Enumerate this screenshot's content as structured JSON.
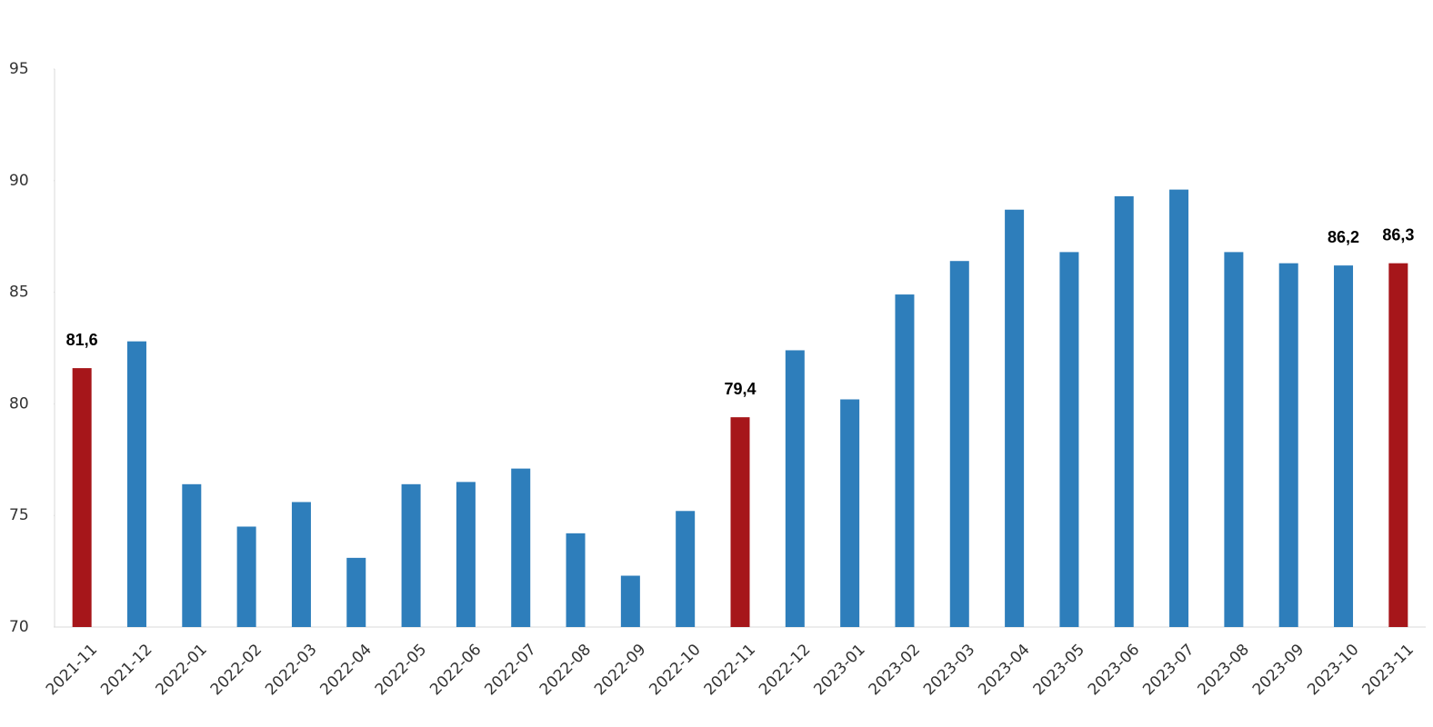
{
  "chart_data": {
    "type": "bar",
    "categories": [
      "2021-11",
      "2021-12",
      "2022-01",
      "2022-02",
      "2022-03",
      "2022-04",
      "2022-05",
      "2022-06",
      "2022-07",
      "2022-08",
      "2022-09",
      "2022-10",
      "2022-11",
      "2022-12",
      "2023-01",
      "2023-02",
      "2023-03",
      "2023-04",
      "2023-05",
      "2023-06",
      "2023-07",
      "2023-08",
      "2023-09",
      "2023-10",
      "2023-11"
    ],
    "values": [
      81.6,
      82.8,
      76.4,
      74.5,
      75.6,
      73.1,
      76.4,
      76.5,
      77.1,
      74.2,
      72.3,
      75.2,
      79.4,
      82.4,
      80.2,
      84.9,
      86.4,
      88.7,
      86.8,
      89.3,
      89.6,
      86.8,
      86.3,
      86.2,
      86.3
    ],
    "value_labels": [
      "81,6",
      null,
      null,
      null,
      null,
      null,
      null,
      null,
      null,
      null,
      null,
      null,
      "79,4",
      null,
      null,
      null,
      null,
      null,
      null,
      null,
      null,
      null,
      null,
      "86,2",
      "86,3"
    ],
    "colors": [
      "#a6161a",
      "#2e7ebb",
      "#2e7ebb",
      "#2e7ebb",
      "#2e7ebb",
      "#2e7ebb",
      "#2e7ebb",
      "#2e7ebb",
      "#2e7ebb",
      "#2e7ebb",
      "#2e7ebb",
      "#2e7ebb",
      "#a6161a",
      "#2e7ebb",
      "#2e7ebb",
      "#2e7ebb",
      "#2e7ebb",
      "#2e7ebb",
      "#2e7ebb",
      "#2e7ebb",
      "#2e7ebb",
      "#2e7ebb",
      "#2e7ebb",
      "#2e7ebb",
      "#a6161a"
    ],
    "ylim": [
      70,
      95
    ],
    "yticks": [
      70,
      75,
      80,
      85,
      90,
      95
    ],
    "grid": false
  }
}
